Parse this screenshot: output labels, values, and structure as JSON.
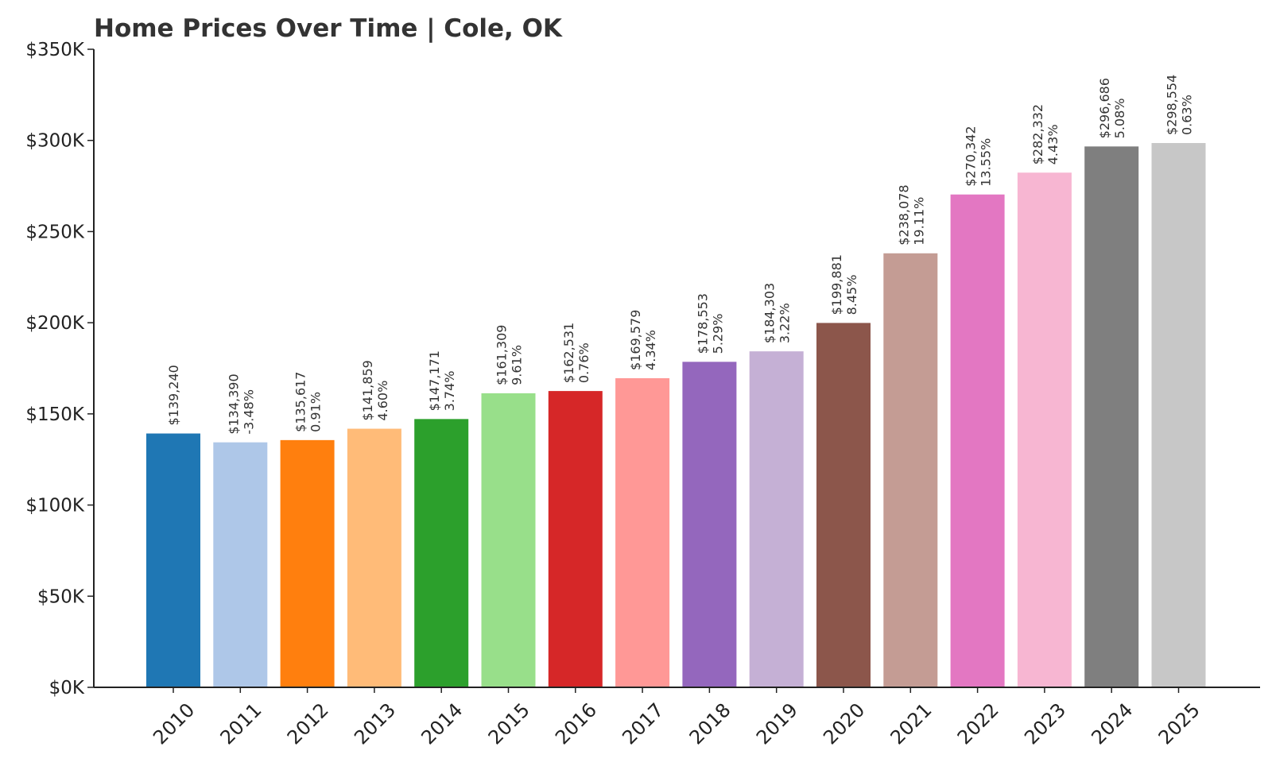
{
  "chart_data": {
    "type": "bar",
    "title": "Home Prices Over Time | Cole, OK",
    "xlabel": "",
    "ylabel": "",
    "ylim": [
      0,
      350000
    ],
    "grid": false,
    "categories": [
      "2010",
      "2011",
      "2012",
      "2013",
      "2014",
      "2015",
      "2016",
      "2017",
      "2018",
      "2019",
      "2020",
      "2021",
      "2022",
      "2023",
      "2024",
      "2025"
    ],
    "values": [
      139240,
      134390,
      135617,
      141859,
      147171,
      161309,
      162531,
      169579,
      178553,
      184303,
      199881,
      238078,
      270342,
      282332,
      296686,
      298554
    ],
    "value_labels": [
      "$139,240",
      "$134,390",
      "$135,617",
      "$141,859",
      "$147,171",
      "$161,309",
      "$162,531",
      "$169,579",
      "$178,553",
      "$184,303",
      "$199,881",
      "$238,078",
      "$270,342",
      "$282,332",
      "$296,686",
      "$298,554"
    ],
    "pct_labels": [
      "",
      "-3.48%",
      "0.91%",
      "4.60%",
      "3.74%",
      "9.61%",
      "0.76%",
      "4.34%",
      "5.29%",
      "3.22%",
      "8.45%",
      "19.11%",
      "13.55%",
      "4.43%",
      "5.08%",
      "0.63%"
    ],
    "colors": [
      "#1f77b4",
      "#aec7e8",
      "#ff7f0e",
      "#ffbb78",
      "#2ca02c",
      "#98df8a",
      "#d62728",
      "#ff9896",
      "#9467bd",
      "#c5b0d5",
      "#8c564b",
      "#c49c94",
      "#e377c2",
      "#f7b6d2",
      "#7f7f7f",
      "#c7c7c7"
    ],
    "y_ticks": [
      0,
      50000,
      100000,
      150000,
      200000,
      250000,
      300000,
      350000
    ],
    "y_tick_labels": [
      "$0K",
      "$50K",
      "$100K",
      "$150K",
      "$200K",
      "$250K",
      "$300K",
      "$350K"
    ]
  }
}
